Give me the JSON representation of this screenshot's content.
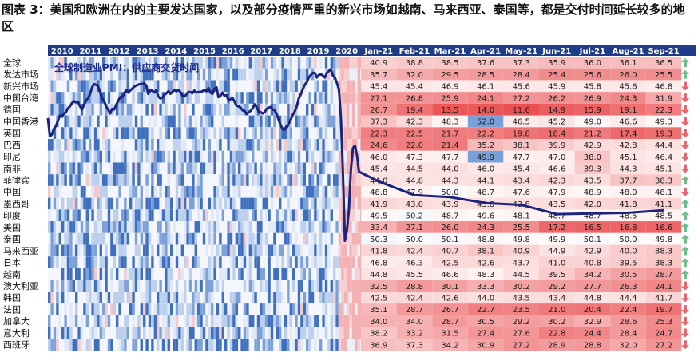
{
  "figure_title": "图表 3：美国和欧洲在内的主要发达国家，以及部分疫情严重的新兴市场如越南、马来西亚、泰国等，都是交付时间延长较多的地区",
  "colors": {
    "header_bg": "#1f3c88",
    "line": "#1a237e",
    "arrow_up": "#6fbf8a",
    "arrow_down": "#e8646e",
    "highlight": "#7aa0d8"
  },
  "chart_data": {
    "type": "heatmap",
    "annotation": "全球制造业PMI：供应商交货时间",
    "history_years": [
      "2010",
      "2011",
      "2012",
      "2013",
      "2014",
      "2015",
      "2016",
      "2017",
      "2018",
      "2019",
      "2020"
    ],
    "months": [
      "Jan-21",
      "Feb-21",
      "Mar-21",
      "Apr-21",
      "May-21",
      "Jun-21",
      "Jul-21",
      "Aug-21",
      "Sep-21"
    ],
    "rows": [
      {
        "label": "全球",
        "values": [
          40.9,
          38.8,
          38.5,
          37.6,
          37.3,
          35.9,
          36.0,
          36.1,
          36.5
        ],
        "trend": "up"
      },
      {
        "label": "发达市场",
        "values": [
          35.7,
          32.0,
          29.5,
          28.5,
          28.4,
          25.4,
          25.6,
          26.0,
          25.5
        ],
        "trend": "up"
      },
      {
        "label": "新兴市场",
        "values": [
          45.4,
          45.4,
          46.9,
          46.1,
          45.6,
          45.9,
          45.8,
          45.6,
          46.8
        ],
        "trend": "down"
      },
      {
        "label": "中国台湾",
        "values": [
          27.1,
          26.8,
          25.9,
          24.1,
          27.2,
          26.2,
          26.9,
          24.3,
          31.9
        ],
        "trend": "down"
      },
      {
        "label": "德国",
        "values": [
          26.7,
          19.4,
          13.5,
          14.0,
          11.6,
          14.9,
          15.9,
          19.1,
          22.3
        ],
        "trend": "down"
      },
      {
        "label": "中国香港",
        "values": [
          37.3,
          42.3,
          48.3,
          52.0,
          46.5,
          45.2,
          49.0,
          46.6,
          49.3
        ],
        "trend": "down"
      },
      {
        "label": "英国",
        "values": [
          22.3,
          22.5,
          21.7,
          22.2,
          19.8,
          18.4,
          21.2,
          17.4,
          19.3
        ],
        "trend": "down"
      },
      {
        "label": "巴西",
        "values": [
          24.6,
          22.0,
          21.4,
          35.2,
          38.1,
          39.9,
          42.9,
          42.8,
          44.4
        ],
        "trend": "down"
      },
      {
        "label": "印尼",
        "values": [
          46.0,
          47.3,
          47.7,
          49.9,
          47.7,
          47.0,
          38.0,
          45.1,
          46.4
        ],
        "trend": "down"
      },
      {
        "label": "南非",
        "values": [
          45.4,
          44.5,
          44.0,
          46.0,
          45.4,
          46.6,
          39.3,
          44.3,
          45.1
        ],
        "trend": "down"
      },
      {
        "label": "菲律宾",
        "values": [
          44.0,
          44.8,
          44.3,
          44.1,
          43.4,
          42.3,
          43.5,
          37.7,
          38.3
        ],
        "trend": "up"
      },
      {
        "label": "中国",
        "values": [
          48.8,
          47.9,
          50.0,
          48.7,
          47.6,
          47.9,
          48.9,
          48.0,
          48.1
        ],
        "trend": "down"
      },
      {
        "label": "墨西哥",
        "values": [
          41.9,
          43.0,
          43.9,
          43.8,
          43.8,
          43.5,
          42.0,
          41.8,
          41.1
        ],
        "trend": "up"
      },
      {
        "label": "印度",
        "values": [
          49.5,
          50.2,
          48.7,
          49.6,
          48.1,
          48.7,
          48.7,
          48.5,
          48.5
        ],
        "trend": "up"
      },
      {
        "label": "美国",
        "values": [
          33.4,
          27.1,
          26.0,
          24.3,
          25.5,
          17.2,
          16.5,
          16.8,
          16.6
        ],
        "trend": "up"
      },
      {
        "label": "泰国",
        "values": [
          50.3,
          50.0,
          50.1,
          48.8,
          49.8,
          49.9,
          50.1,
          50.0,
          49.8
        ],
        "trend": "up"
      },
      {
        "label": "马来西亚",
        "values": [
          41.8,
          42.4,
          40.7,
          38.1,
          40.9,
          44.9,
          42.9,
          40.0,
          38.3
        ],
        "trend": "up"
      },
      {
        "label": "日本",
        "values": [
          46.8,
          46.3,
          42.5,
          42.6,
          43.7,
          41.0,
          40.8,
          39.5,
          38.3
        ],
        "trend": "up"
      },
      {
        "label": "越南",
        "values": [
          44.8,
          45.5,
          46.6,
          48.3,
          44.5,
          39.5,
          34.2,
          30.5,
          28.7
        ],
        "trend": "up"
      },
      {
        "label": "澳大利亚",
        "values": [
          32.5,
          28.8,
          30.1,
          33.3,
          30.2,
          29.2,
          27.7,
          26.3,
          24.1
        ],
        "trend": "down"
      },
      {
        "label": "韩国",
        "values": [
          42.5,
          42.4,
          42.6,
          44.0,
          43.5,
          43.4,
          44.8,
          44.4,
          41.7
        ],
        "trend": "down"
      },
      {
        "label": "法国",
        "values": [
          35.1,
          28.7,
          26.7,
          22.7,
          23.5,
          21.0,
          20.4,
          22.4,
          19.7
        ],
        "trend": "down"
      },
      {
        "label": "加拿大",
        "values": [
          34.0,
          34.0,
          28.7,
          30.5,
          29.2,
          30.2,
          32.9,
          28.6,
          25.3
        ],
        "trend": "down"
      },
      {
        "label": "意大利",
        "values": [
          38.2,
          33.2,
          31.5,
          27.4,
          27.6,
          22.8,
          24.4,
          28.4,
          24.7
        ],
        "trend": "down"
      },
      {
        "label": "西班牙",
        "values": [
          36.9,
          37.3,
          34.2,
          30.9,
          27.2,
          28.9,
          28.8,
          32.0,
          27.2
        ],
        "trend": "down"
      }
    ],
    "highlighted_cells": [
      {
        "row": "中国香港",
        "month": "Apr-21"
      },
      {
        "row": "印尼",
        "month": "Apr-21"
      }
    ],
    "global_line": {
      "ylim": [
        15,
        60
      ],
      "values": [
        50.6,
        47.8,
        48.1,
        49.0,
        49.4,
        50.2,
        51.0,
        50.8,
        51.3,
        51.5,
        52.1,
        52.4,
        52.9,
        53.2,
        53.0,
        53.1,
        52.4,
        51.9,
        52.6,
        53.3,
        53.6,
        54.3,
        55.3,
        55.8,
        55.7,
        55.5,
        54.6,
        53.6,
        53.2,
        52.4,
        51.9,
        51.3,
        52.0,
        51.9,
        52.6,
        53.2,
        53.8,
        53.8,
        54.3,
        54.9,
        54.5,
        54.8,
        55.1,
        55.4,
        55.6,
        55.7,
        55.8,
        55.8,
        55.9,
        55.6,
        54.3,
        54.8,
        54.8,
        54.5,
        54.9,
        53.9,
        53.6,
        53.7,
        54.1,
        54.4,
        54.7,
        54.3,
        54.6,
        54.9,
        54.7,
        54.9,
        54.6,
        54.0,
        53.9,
        54.2,
        54.6,
        54.6,
        54.4,
        54.8,
        54.5,
        54.6,
        54.6,
        54.7,
        54.9,
        54.7,
        55.2,
        54.5,
        54.3,
        55.1,
        55.3,
        53.8,
        54.0,
        54.5,
        54.0,
        54.1,
        53.3,
        53.5,
        53.7,
        53.1,
        52.5,
        52.4,
        52.2,
        51.8,
        51.7,
        51.2,
        51.5,
        51.7,
        52.1,
        52.7,
        52.3,
        51.6,
        51.5,
        51.3,
        51.5,
        52.0,
        52.2,
        52.3,
        51.9,
        51.8,
        51.2,
        50.3,
        49.5,
        48.9,
        48.8,
        49.4,
        49.7,
        50.4,
        51.1,
        51.6,
        52.4,
        53.6,
        54.2,
        55.0,
        55.7,
        56.1,
        56.8,
        57.2,
        57.5,
        57.5,
        56.8,
        57.2,
        57.3,
        57.1,
        56.8,
        57.5,
        57.8,
        58.1,
        57.1,
        56.8,
        56.0,
        55.0,
        50.7,
        42.2,
        31.8,
        33.4,
        36.5,
        42.7,
        46.0,
        46.4,
        44.9,
        42.4,
        40.9,
        38.8,
        38.5,
        37.6,
        37.3,
        35.9,
        36.0,
        36.1,
        36.5
      ]
    }
  }
}
